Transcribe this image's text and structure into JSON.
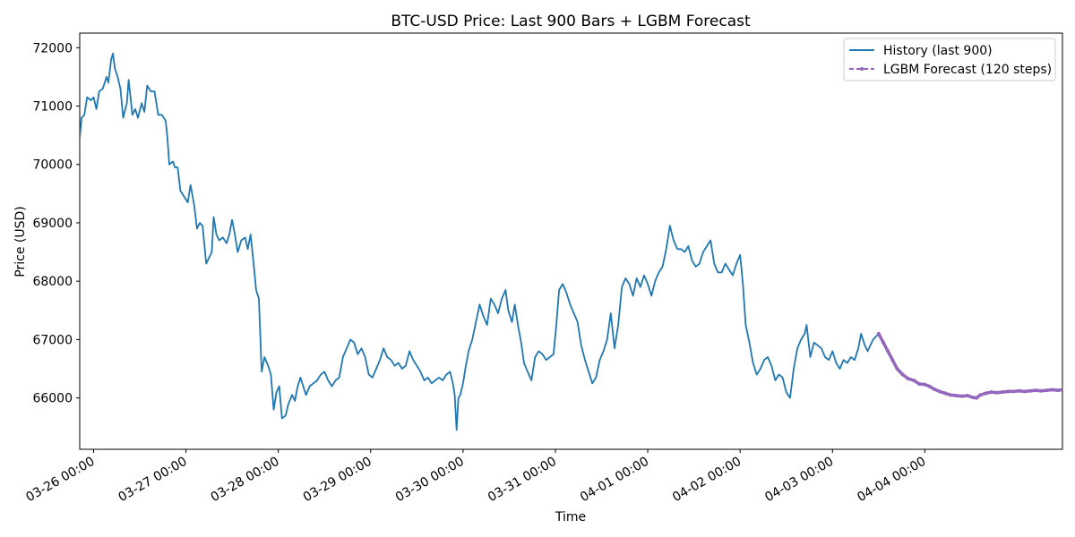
{
  "chart_data": {
    "type": "line",
    "title": "BTC-USD Price: Last 900 Bars + LGBM Forecast",
    "xlabel": "Time",
    "ylabel": "Price (USD)",
    "x_unit": "days since 03-25 00:00",
    "xlim": [
      0.85,
      11.49
    ],
    "ylim": [
      65120,
      72250
    ],
    "y_ticks": [
      66000,
      67000,
      68000,
      69000,
      70000,
      71000,
      72000
    ],
    "y_tick_labels": [
      "66000",
      "67000",
      "68000",
      "69000",
      "70000",
      "71000",
      "72000"
    ],
    "x_ticks": [
      1,
      2,
      3,
      4,
      5,
      6,
      7,
      8,
      9,
      10
    ],
    "x_tick_labels": [
      "03-26 00:00",
      "03-27 00:00",
      "03-28 00:00",
      "03-29 00:00",
      "03-30 00:00",
      "03-31 00:00",
      "04-01 00:00",
      "04-02 00:00",
      "04-03 00:00",
      "04-04 00:00"
    ],
    "legend_position": "top-right",
    "series": [
      {
        "name": "History (last 900)",
        "color": "#1f77b4",
        "style": "solid",
        "points": [
          [
            0.85,
            70450
          ],
          [
            0.87,
            70800
          ],
          [
            0.9,
            70850
          ],
          [
            0.93,
            71150
          ],
          [
            0.97,
            71100
          ],
          [
            1.0,
            71150
          ],
          [
            1.03,
            70950
          ],
          [
            1.06,
            71250
          ],
          [
            1.1,
            71300
          ],
          [
            1.14,
            71500
          ],
          [
            1.16,
            71400
          ],
          [
            1.19,
            71800
          ],
          [
            1.21,
            71900
          ],
          [
            1.23,
            71650
          ],
          [
            1.26,
            71500
          ],
          [
            1.29,
            71300
          ],
          [
            1.32,
            70800
          ],
          [
            1.36,
            71050
          ],
          [
            1.38,
            71450
          ],
          [
            1.42,
            70850
          ],
          [
            1.45,
            70950
          ],
          [
            1.48,
            70800
          ],
          [
            1.52,
            71050
          ],
          [
            1.55,
            70900
          ],
          [
            1.58,
            71350
          ],
          [
            1.62,
            71250
          ],
          [
            1.66,
            71250
          ],
          [
            1.7,
            70850
          ],
          [
            1.74,
            70850
          ],
          [
            1.78,
            70750
          ],
          [
            1.8,
            70450
          ],
          [
            1.82,
            70000
          ],
          [
            1.86,
            70050
          ],
          [
            1.88,
            69950
          ],
          [
            1.91,
            69950
          ],
          [
            1.94,
            69550
          ],
          [
            1.98,
            69450
          ],
          [
            2.02,
            69350
          ],
          [
            2.05,
            69650
          ],
          [
            2.09,
            69300
          ],
          [
            2.12,
            68900
          ],
          [
            2.15,
            69000
          ],
          [
            2.18,
            68950
          ],
          [
            2.22,
            68300
          ],
          [
            2.25,
            68400
          ],
          [
            2.28,
            68500
          ],
          [
            2.3,
            69100
          ],
          [
            2.33,
            68800
          ],
          [
            2.36,
            68700
          ],
          [
            2.4,
            68750
          ],
          [
            2.44,
            68650
          ],
          [
            2.47,
            68800
          ],
          [
            2.5,
            69050
          ],
          [
            2.53,
            68800
          ],
          [
            2.56,
            68500
          ],
          [
            2.6,
            68700
          ],
          [
            2.64,
            68750
          ],
          [
            2.67,
            68550
          ],
          [
            2.7,
            68800
          ],
          [
            2.73,
            68350
          ],
          [
            2.76,
            67850
          ],
          [
            2.79,
            67700
          ],
          [
            2.82,
            66450
          ],
          [
            2.85,
            66700
          ],
          [
            2.89,
            66550
          ],
          [
            2.92,
            66400
          ],
          [
            2.95,
            65800
          ],
          [
            2.98,
            66100
          ],
          [
            3.01,
            66200
          ],
          [
            3.04,
            65650
          ],
          [
            3.08,
            65700
          ],
          [
            3.11,
            65900
          ],
          [
            3.15,
            66050
          ],
          [
            3.18,
            65950
          ],
          [
            3.21,
            66200
          ],
          [
            3.24,
            66350
          ],
          [
            3.27,
            66200
          ],
          [
            3.3,
            66050
          ],
          [
            3.34,
            66200
          ],
          [
            3.38,
            66250
          ],
          [
            3.42,
            66300
          ],
          [
            3.46,
            66400
          ],
          [
            3.5,
            66450
          ],
          [
            3.54,
            66300
          ],
          [
            3.58,
            66200
          ],
          [
            3.62,
            66300
          ],
          [
            3.66,
            66350
          ],
          [
            3.7,
            66700
          ],
          [
            3.74,
            66850
          ],
          [
            3.78,
            67000
          ],
          [
            3.82,
            66950
          ],
          [
            3.86,
            66750
          ],
          [
            3.9,
            66850
          ],
          [
            3.94,
            66700
          ],
          [
            3.98,
            66400
          ],
          [
            4.02,
            66350
          ],
          [
            4.06,
            66500
          ],
          [
            4.1,
            66650
          ],
          [
            4.14,
            66850
          ],
          [
            4.18,
            66700
          ],
          [
            4.22,
            66650
          ],
          [
            4.26,
            66550
          ],
          [
            4.3,
            66600
          ],
          [
            4.34,
            66500
          ],
          [
            4.38,
            66550
          ],
          [
            4.42,
            66800
          ],
          [
            4.46,
            66650
          ],
          [
            4.5,
            66550
          ],
          [
            4.54,
            66450
          ],
          [
            4.58,
            66300
          ],
          [
            4.62,
            66350
          ],
          [
            4.66,
            66250
          ],
          [
            4.7,
            66300
          ],
          [
            4.74,
            66350
          ],
          [
            4.78,
            66300
          ],
          [
            4.82,
            66400
          ],
          [
            4.86,
            66450
          ],
          [
            4.89,
            66250
          ],
          [
            4.91,
            66050
          ],
          [
            4.93,
            65450
          ],
          [
            4.95,
            66000
          ],
          [
            4.97,
            66050
          ],
          [
            5.0,
            66250
          ],
          [
            5.03,
            66550
          ],
          [
            5.06,
            66800
          ],
          [
            5.1,
            67000
          ],
          [
            5.14,
            67300
          ],
          [
            5.18,
            67600
          ],
          [
            5.22,
            67400
          ],
          [
            5.26,
            67250
          ],
          [
            5.3,
            67700
          ],
          [
            5.34,
            67600
          ],
          [
            5.38,
            67450
          ],
          [
            5.42,
            67700
          ],
          [
            5.46,
            67850
          ],
          [
            5.49,
            67500
          ],
          [
            5.53,
            67300
          ],
          [
            5.56,
            67600
          ],
          [
            5.6,
            67200
          ],
          [
            5.63,
            66950
          ],
          [
            5.66,
            66600
          ],
          [
            5.7,
            66450
          ],
          [
            5.74,
            66300
          ],
          [
            5.78,
            66700
          ],
          [
            5.82,
            66800
          ],
          [
            5.86,
            66750
          ],
          [
            5.9,
            66650
          ],
          [
            5.94,
            66700
          ],
          [
            5.98,
            66750
          ],
          [
            6.01,
            67250
          ],
          [
            6.04,
            67850
          ],
          [
            6.08,
            67950
          ],
          [
            6.12,
            67800
          ],
          [
            6.16,
            67600
          ],
          [
            6.2,
            67450
          ],
          [
            6.24,
            67300
          ],
          [
            6.28,
            66900
          ],
          [
            6.32,
            66650
          ],
          [
            6.36,
            66450
          ],
          [
            6.4,
            66250
          ],
          [
            6.44,
            66350
          ],
          [
            6.48,
            66650
          ],
          [
            6.52,
            66800
          ],
          [
            6.56,
            67000
          ],
          [
            6.6,
            67450
          ],
          [
            6.64,
            66850
          ],
          [
            6.68,
            67250
          ],
          [
            6.72,
            67900
          ],
          [
            6.76,
            68050
          ],
          [
            6.8,
            67950
          ],
          [
            6.84,
            67750
          ],
          [
            6.88,
            68050
          ],
          [
            6.92,
            67900
          ],
          [
            6.96,
            68100
          ],
          [
            7.0,
            67950
          ],
          [
            7.04,
            67750
          ],
          [
            7.08,
            68000
          ],
          [
            7.12,
            68150
          ],
          [
            7.16,
            68250
          ],
          [
            7.2,
            68550
          ],
          [
            7.24,
            68950
          ],
          [
            7.28,
            68700
          ],
          [
            7.32,
            68550
          ],
          [
            7.36,
            68550
          ],
          [
            7.4,
            68500
          ],
          [
            7.44,
            68600
          ],
          [
            7.48,
            68350
          ],
          [
            7.52,
            68250
          ],
          [
            7.56,
            68300
          ],
          [
            7.6,
            68500
          ],
          [
            7.64,
            68600
          ],
          [
            7.68,
            68700
          ],
          [
            7.72,
            68300
          ],
          [
            7.76,
            68150
          ],
          [
            7.8,
            68150
          ],
          [
            7.84,
            68300
          ],
          [
            7.88,
            68200
          ],
          [
            7.92,
            68100
          ],
          [
            7.96,
            68300
          ],
          [
            8.0,
            68450
          ],
          [
            8.03,
            67950
          ],
          [
            8.06,
            67250
          ],
          [
            8.1,
            66950
          ],
          [
            8.14,
            66600
          ],
          [
            8.18,
            66400
          ],
          [
            8.22,
            66500
          ],
          [
            8.26,
            66650
          ],
          [
            8.3,
            66700
          ],
          [
            8.34,
            66550
          ],
          [
            8.38,
            66300
          ],
          [
            8.42,
            66400
          ],
          [
            8.46,
            66350
          ],
          [
            8.5,
            66100
          ],
          [
            8.54,
            66000
          ],
          [
            8.58,
            66500
          ],
          [
            8.62,
            66850
          ],
          [
            8.66,
            67000
          ],
          [
            8.7,
            67100
          ],
          [
            8.72,
            67250
          ],
          [
            8.76,
            66700
          ],
          [
            8.8,
            66950
          ],
          [
            8.84,
            66900
          ],
          [
            8.88,
            66850
          ],
          [
            8.92,
            66700
          ],
          [
            8.96,
            66650
          ],
          [
            9.0,
            66800
          ],
          [
            9.04,
            66600
          ],
          [
            9.08,
            66500
          ],
          [
            9.12,
            66650
          ],
          [
            9.16,
            66600
          ],
          [
            9.2,
            66700
          ],
          [
            9.24,
            66650
          ],
          [
            9.28,
            66850
          ],
          [
            9.31,
            67100
          ],
          [
            9.35,
            66900
          ],
          [
            9.38,
            66800
          ],
          [
            9.41,
            66900
          ],
          [
            9.44,
            67000
          ],
          [
            9.5,
            67100
          ]
        ]
      },
      {
        "name": "LGBM Forecast (120 steps)",
        "color": "#9467bd",
        "style": "dashed-marker",
        "points": [
          [
            9.5,
            67100
          ],
          [
            9.55,
            66950
          ],
          [
            9.6,
            66800
          ],
          [
            9.65,
            66650
          ],
          [
            9.7,
            66500
          ],
          [
            9.76,
            66400
          ],
          [
            9.82,
            66330
          ],
          [
            9.88,
            66300
          ],
          [
            9.94,
            66240
          ],
          [
            10.0,
            66230
          ],
          [
            10.05,
            66200
          ],
          [
            10.1,
            66150
          ],
          [
            10.16,
            66110
          ],
          [
            10.22,
            66080
          ],
          [
            10.28,
            66050
          ],
          [
            10.34,
            66040
          ],
          [
            10.4,
            66030
          ],
          [
            10.46,
            66040
          ],
          [
            10.52,
            66010
          ],
          [
            10.56,
            66000
          ],
          [
            10.6,
            66050
          ],
          [
            10.66,
            66080
          ],
          [
            10.72,
            66100
          ],
          [
            10.78,
            66090
          ],
          [
            10.84,
            66100
          ],
          [
            10.9,
            66110
          ],
          [
            10.96,
            66110
          ],
          [
            11.02,
            66120
          ],
          [
            11.08,
            66110
          ],
          [
            11.14,
            66120
          ],
          [
            11.2,
            66130
          ],
          [
            11.26,
            66120
          ],
          [
            11.32,
            66130
          ],
          [
            11.38,
            66140
          ],
          [
            11.44,
            66130
          ],
          [
            11.49,
            66140
          ]
        ]
      }
    ]
  }
}
